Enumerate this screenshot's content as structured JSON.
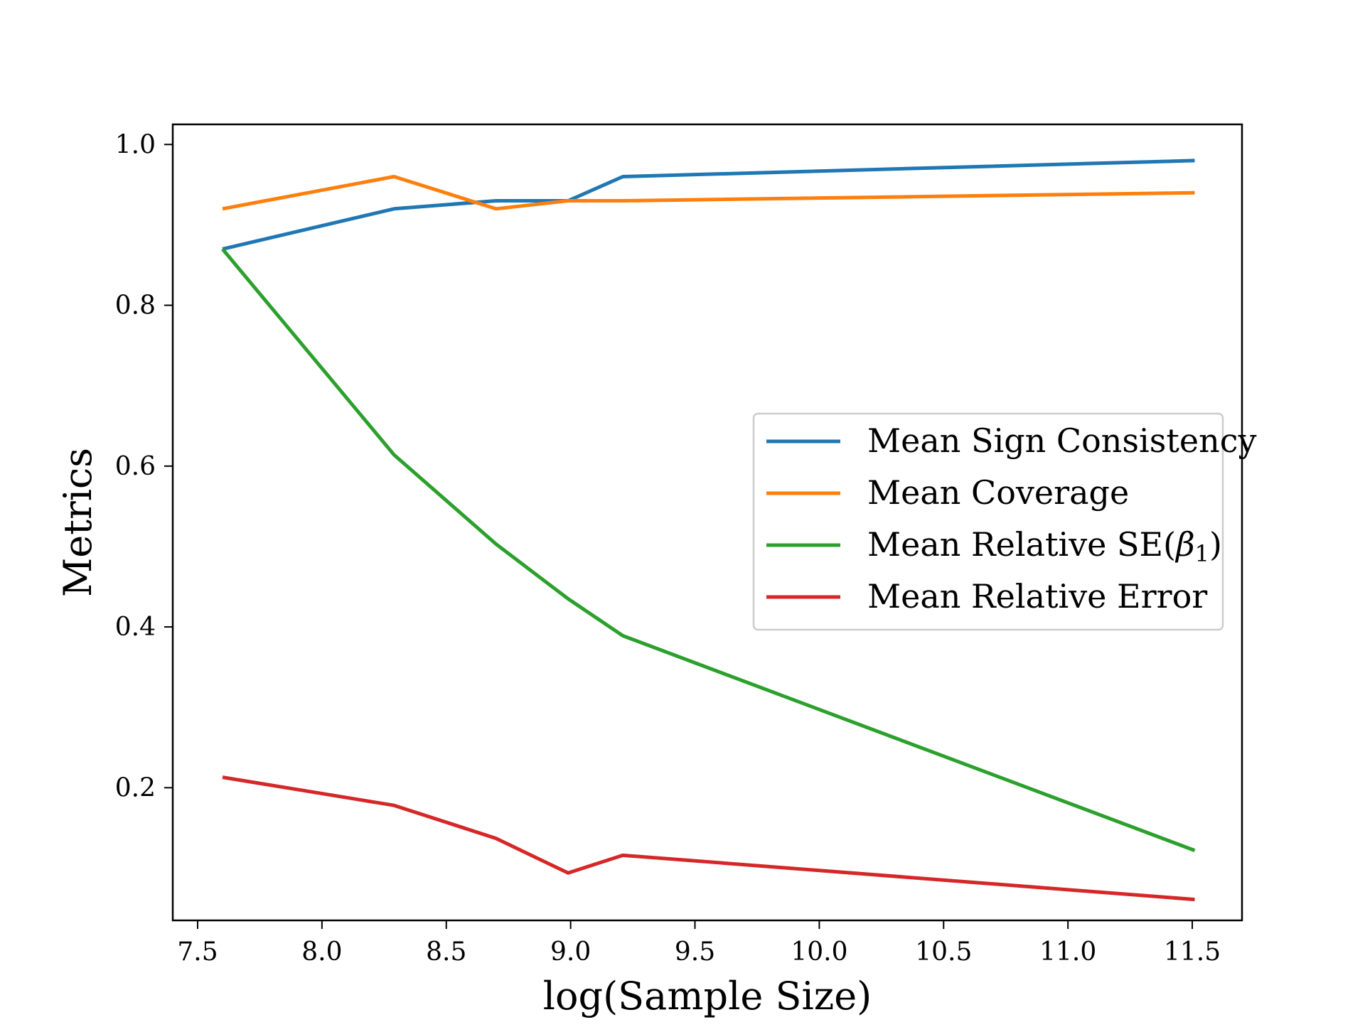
{
  "chart_data": {
    "type": "line",
    "title": "",
    "xlabel": "log(Sample Size)",
    "ylabel": "Metrics",
    "xlim": [
      7.4,
      11.7
    ],
    "ylim": [
      0.035,
      1.025
    ],
    "xticks": [
      7.5,
      8.0,
      8.5,
      9.0,
      9.5,
      10.0,
      10.5,
      11.0,
      11.5
    ],
    "xtick_labels": [
      "7.5",
      "8.0",
      "8.5",
      "9.0",
      "9.5",
      "10.0",
      "10.5",
      "11.0",
      "11.5"
    ],
    "yticks": [
      0.2,
      0.4,
      0.6,
      0.8,
      1.0
    ],
    "ytick_labels": [
      "0.2",
      "0.4",
      "0.6",
      "0.8",
      "1.0"
    ],
    "grid": false,
    "legend_position": "center-right",
    "x": [
      7.6,
      8.29,
      8.7,
      8.99,
      9.21,
      11.51
    ],
    "series": [
      {
        "name": "Mean Sign Consistency",
        "color": "#1f77b4",
        "values": [
          0.87,
          0.92,
          0.93,
          0.93,
          0.96,
          0.98
        ]
      },
      {
        "name": "Mean Coverage",
        "color": "#ff7f0e",
        "values": [
          0.92,
          0.96,
          0.92,
          0.93,
          0.93,
          0.94
        ]
      },
      {
        "name_parts": [
          "Mean Relative SE(",
          "β",
          "1",
          ")"
        ],
        "color": "#2ca02c",
        "values": [
          0.87,
          0.614,
          0.503,
          0.435,
          0.389,
          0.122
        ]
      },
      {
        "name": "Mean Relative Error",
        "color": "#d62728",
        "values": [
          0.213,
          0.178,
          0.137,
          0.094,
          0.116,
          0.061
        ]
      }
    ]
  }
}
